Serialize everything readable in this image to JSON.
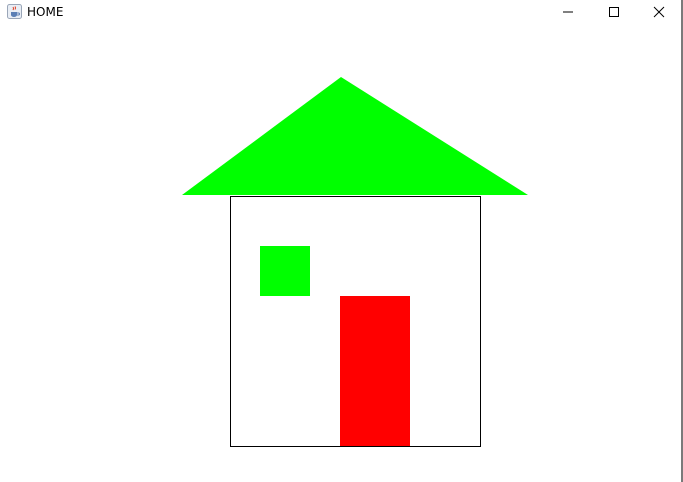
{
  "window": {
    "title": "HOME",
    "icon": "java-cup-icon",
    "controls": [
      "minimize-icon",
      "maximize-icon",
      "close-icon"
    ]
  },
  "scene": {
    "roof_color": "#00ff00",
    "wall_outline_color": "#000000",
    "wall_fill_color": "#ffffff",
    "window_color": "#00ff00",
    "door_color": "#ff0000"
  }
}
